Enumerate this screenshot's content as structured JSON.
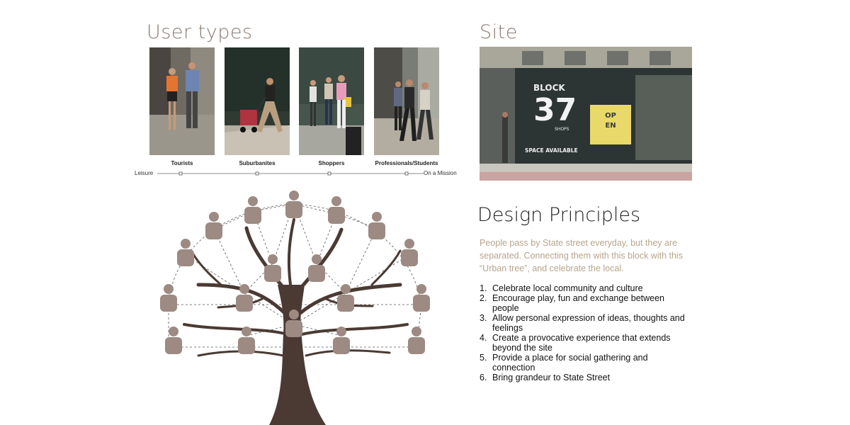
{
  "user_types": {
    "title": "User types",
    "groups": [
      {
        "label": "Tourists"
      },
      {
        "label": "Suburbanites"
      },
      {
        "label": "Shoppers"
      },
      {
        "label": "Professionals/Students"
      }
    ],
    "scale": {
      "left": "Leisure",
      "right": "On a Mission"
    }
  },
  "site": {
    "title": "Site",
    "storefront": {
      "sign_line1": "BLOCK",
      "sign_number": "37",
      "sign_line2": "SHOPS",
      "poster_line1": "OP",
      "poster_line2": "EN",
      "banner": "SPACE AVAILABLE"
    }
  },
  "design_principles": {
    "title": "Design Principles",
    "intro": "People pass by State street everyday, but they are separated. Connecting them with this block with this “Urban tree”, and celebrate the local.",
    "items": [
      {
        "num": "1.",
        "text": "Celebrate local community and culture"
      },
      {
        "num": "2.",
        "text": "Encourage play, fun and exchange between people"
      },
      {
        "num": "3.",
        "text": "Allow personal expression of ideas, thoughts and feelings"
      },
      {
        "num": "4.",
        "text": "Create a provocative experience that extends beyond the site"
      },
      {
        "num": "5.",
        "text": "Provide a place for social gathering and connection"
      },
      {
        "num": "6.",
        "text": "Bring grandeur to State Street"
      }
    ]
  },
  "colors": {
    "heading": "#8a7b72",
    "intro": "#b8a58c",
    "tree_trunk": "#4a3a33",
    "figure": "#9c8a83"
  }
}
